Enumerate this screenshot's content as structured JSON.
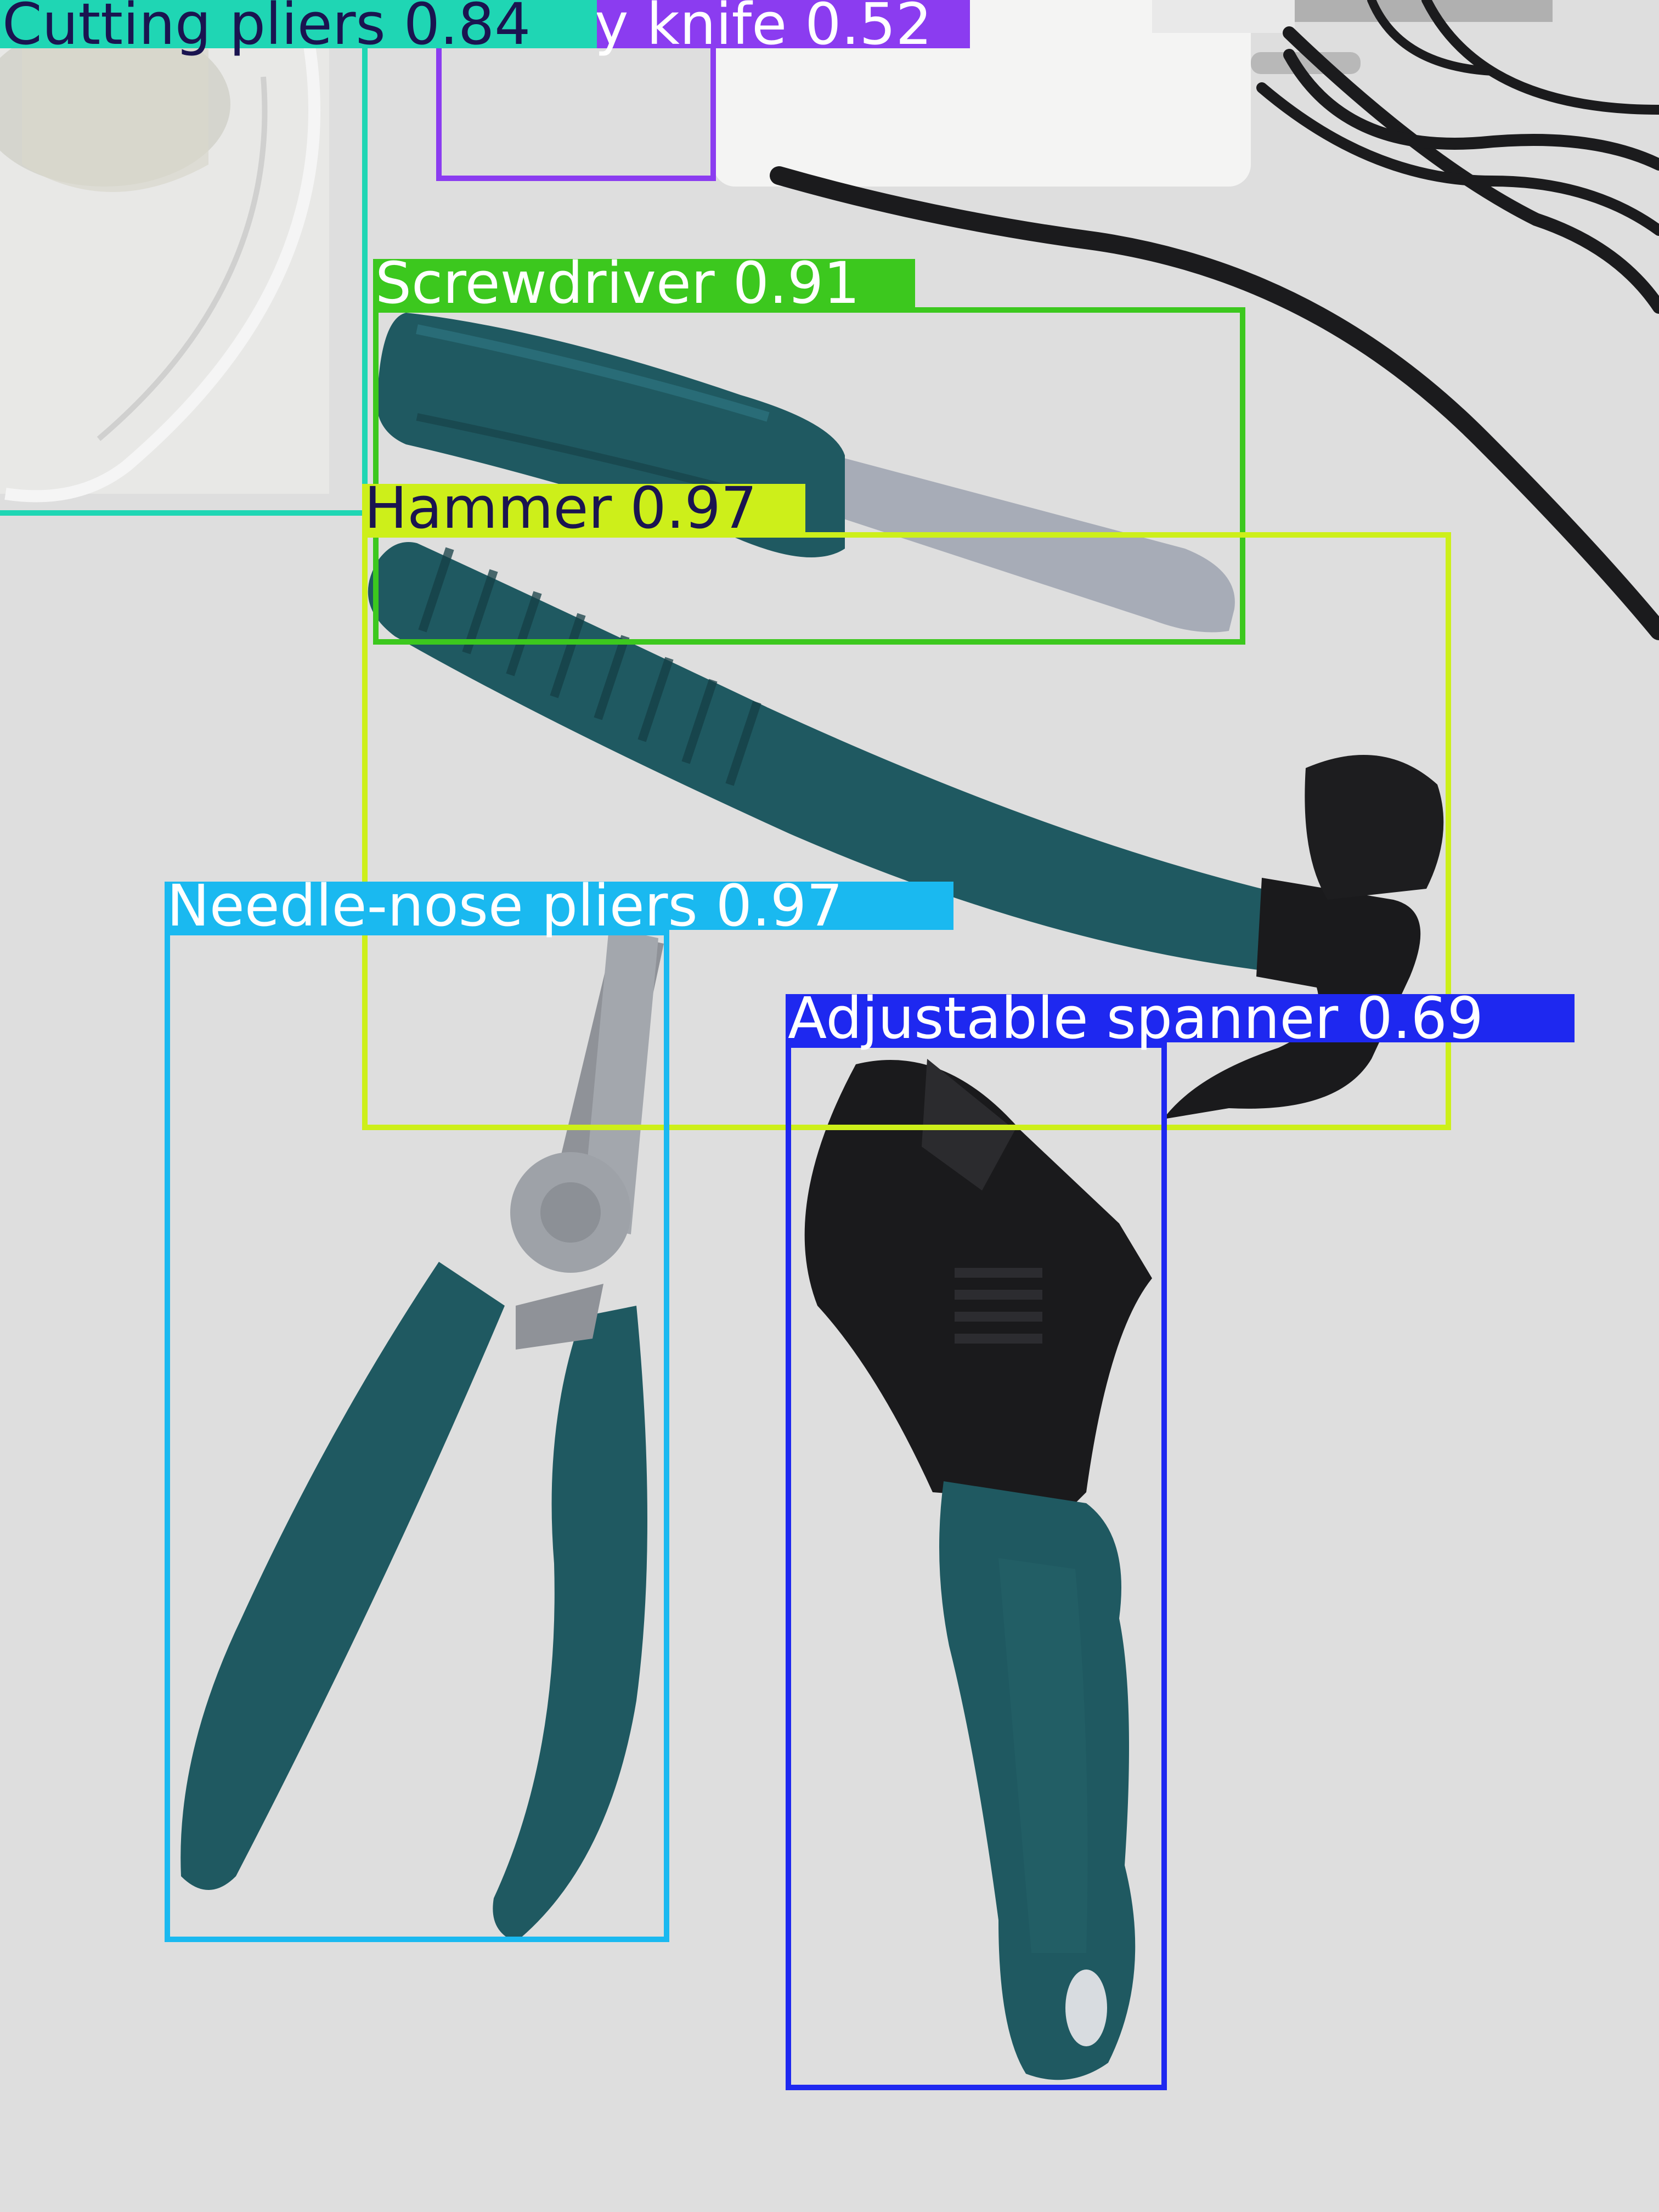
{
  "image": {
    "description_free": true,
    "surface_color": "#dcdcda",
    "tool_color": "#1f5961",
    "metal_color": "#9a9ea6",
    "black_part_color": "#1a1a1c"
  },
  "detections": [
    {
      "label": "Cutting pliers 0.84",
      "color": "#1fd6b4",
      "text_color": "#1a1450"
    },
    {
      "label": "Utility knife 0.52",
      "visible_label": "y knife 0.52",
      "color": "#8b3cf0",
      "text_color": "#ffffff"
    },
    {
      "label": "Screwdriver 0.91",
      "color": "#3cc81e",
      "text_color": "#ffffff"
    },
    {
      "label": "Hammer 0.97",
      "color": "#cdef1a",
      "text_color": "#1a1450"
    },
    {
      "label": "Needle-nose pliers 0.97",
      "color": "#1ab9f0",
      "text_color": "#ffffff"
    },
    {
      "label": "Adjustable spanner 0.69",
      "color": "#1e28f0",
      "text_color": "#ffffff"
    }
  ]
}
